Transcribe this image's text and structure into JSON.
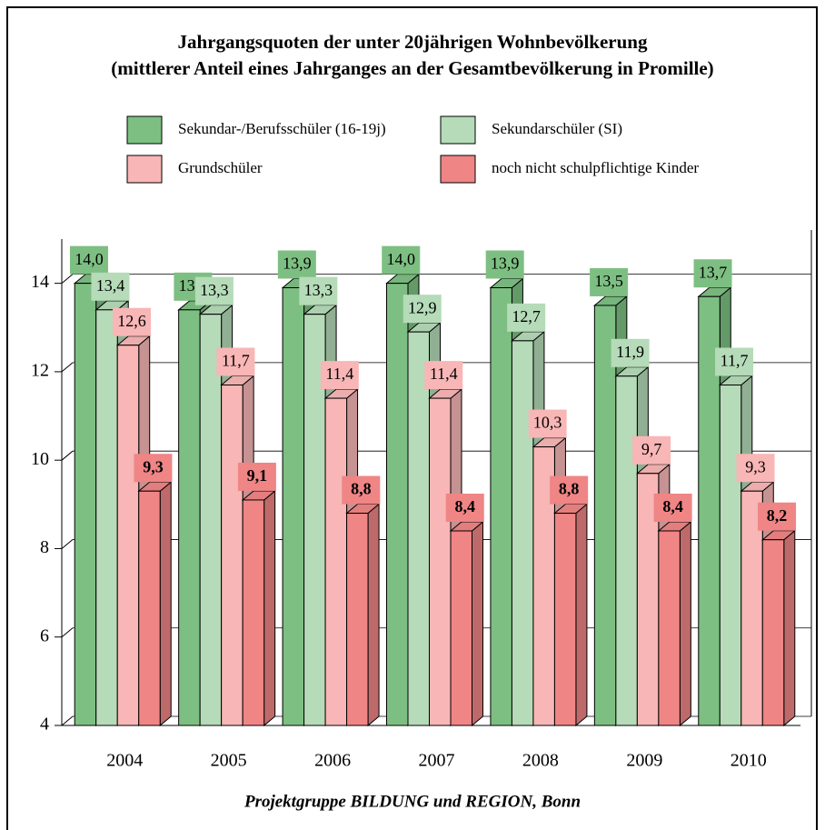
{
  "chart_data": {
    "type": "bar3d",
    "title": "Jahrgangsquoten der unter 20jährigen Wohnbevölkerung",
    "subtitle": "(mittlerer Anteil eines Jahrganges an der Gesamtbevölkerung in Promille)",
    "source": "Projektgruppe BILDUNG und REGION, Bonn",
    "categories": [
      "2004",
      "2005",
      "2006",
      "2007",
      "2008",
      "2009",
      "2010"
    ],
    "series": [
      {
        "name": "Sekundar-/Berufsschüler (16-19j)",
        "color": "#7dbf82",
        "values": [
          14.0,
          13.4,
          13.9,
          14.0,
          13.9,
          13.5,
          13.7
        ],
        "value_labels": [
          "14,0",
          "13,4",
          "13,9",
          "14,0",
          "13,9",
          "13,5",
          "13,7"
        ]
      },
      {
        "name": "Sekundarschüler (SI)",
        "color": "#b5dbb8",
        "values": [
          13.4,
          13.3,
          13.3,
          12.9,
          12.7,
          11.9,
          11.7
        ],
        "value_labels": [
          "13,4",
          "13,3",
          "13,3",
          "12,9",
          "12,7",
          "11,9",
          "11,7"
        ]
      },
      {
        "name": "Grundschüler",
        "color": "#f8b6b6",
        "values": [
          12.6,
          11.7,
          11.4,
          11.4,
          10.3,
          9.7,
          9.3
        ],
        "value_labels": [
          "12,6",
          "11,7",
          "11,4",
          "11,4",
          "10,3",
          "9,7",
          "9,3"
        ]
      },
      {
        "name": "noch nicht schulpflichtige Kinder",
        "color": "#ef8585",
        "values": [
          9.3,
          9.1,
          8.8,
          8.4,
          8.8,
          8.4,
          8.2
        ],
        "value_labels": [
          "9,3",
          "9,1",
          "8,8",
          "8,4",
          "8,8",
          "8,4",
          "8,2"
        ]
      }
    ],
    "ylim": [
      4,
      15
    ],
    "yticks": [
      4,
      6,
      8,
      10,
      12,
      14
    ],
    "grid": true
  }
}
